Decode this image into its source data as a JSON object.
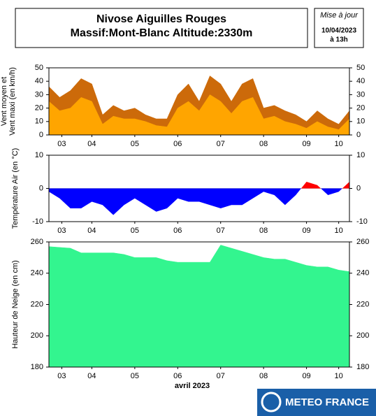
{
  "header": {
    "title": [
      "Nivose Aiguilles Rouges",
      "Massif:Mont-Blanc Altitude:2330m"
    ],
    "update": [
      "Mise à jour",
      "10/04/2023",
      "à 13h"
    ]
  },
  "logo": "METEO FRANCE",
  "chart_data": [
    {
      "type": "area",
      "ylabel": [
        "Vent moyen et",
        "Vent maxi (en km/h)"
      ],
      "x": [
        3.5,
        3.75,
        4,
        4.25,
        4.5,
        4.75,
        5,
        5.25,
        5.5,
        5.75,
        6,
        6.25,
        6.5,
        6.75,
        7,
        7.25,
        7.5,
        7.75,
        8,
        8.25,
        8.5,
        8.75,
        9,
        9.25,
        9.5,
        9.75,
        10,
        10.25,
        10.5
      ],
      "xlim": [
        3.5,
        10.5
      ],
      "xticks": [
        {
          "value": 3.8,
          "label": "03"
        },
        {
          "value": 4.5,
          "label": "04"
        },
        {
          "value": 5.5,
          "label": "05"
        },
        {
          "value": 6.5,
          "label": "06"
        },
        {
          "value": 7.5,
          "label": "07"
        },
        {
          "value": 8.5,
          "label": "08"
        },
        {
          "value": 9.5,
          "label": "09"
        },
        {
          "value": 10.25,
          "label": "10"
        }
      ],
      "ylim": [
        0,
        50
      ],
      "yticks": [
        0,
        10,
        20,
        30,
        40,
        50
      ],
      "series": [
        {
          "color": "#cc6a0a",
          "values": [
            36,
            28,
            33,
            42,
            38,
            15,
            22,
            18,
            20,
            15,
            12,
            12,
            30,
            38,
            25,
            44,
            38,
            25,
            38,
            42,
            20,
            22,
            18,
            15,
            10,
            18,
            12,
            8,
            18
          ]
        },
        {
          "color": "#ffa500",
          "values": [
            25,
            18,
            20,
            28,
            25,
            8,
            14,
            12,
            12,
            10,
            7,
            6,
            20,
            25,
            18,
            30,
            25,
            16,
            25,
            28,
            12,
            14,
            10,
            8,
            5,
            10,
            6,
            4,
            12
          ]
        }
      ]
    },
    {
      "type": "signed-area",
      "ylabel": [
        "Température Air (en °C)"
      ],
      "x": [
        3.5,
        3.75,
        4,
        4.25,
        4.5,
        4.75,
        5,
        5.25,
        5.5,
        5.75,
        6,
        6.25,
        6.5,
        6.75,
        7,
        7.25,
        7.5,
        7.75,
        8,
        8.25,
        8.5,
        8.75,
        9,
        9.25,
        9.5,
        9.75,
        10,
        10.25,
        10.5
      ],
      "xlim": [
        3.5,
        10.5
      ],
      "xticks": [
        {
          "value": 3.8,
          "label": "03"
        },
        {
          "value": 4.5,
          "label": "04"
        },
        {
          "value": 5.5,
          "label": "05"
        },
        {
          "value": 6.5,
          "label": "06"
        },
        {
          "value": 7.5,
          "label": "07"
        },
        {
          "value": 8.5,
          "label": "08"
        },
        {
          "value": 9.5,
          "label": "09"
        },
        {
          "value": 10.25,
          "label": "10"
        }
      ],
      "ylim": [
        -10,
        10
      ],
      "yticks": [
        -10,
        0,
        10
      ],
      "grid": true,
      "color_above": "#ff0000",
      "color_below": "#0000ff",
      "values": [
        -1,
        -3,
        -6,
        -6,
        -4,
        -5,
        -8,
        -5,
        -3,
        -5,
        -7,
        -6,
        -3,
        -4,
        -4,
        -5,
        -6,
        -5,
        -5,
        -3,
        -1,
        -2,
        -5,
        -2,
        2,
        1,
        -2,
        -1,
        2
      ]
    },
    {
      "type": "area",
      "ylabel": [
        "Hauteur de Neige (en cm)"
      ],
      "xlabel": "avril 2023",
      "x": [
        3.5,
        3.75,
        4,
        4.25,
        4.5,
        4.75,
        5,
        5.25,
        5.5,
        5.75,
        6,
        6.25,
        6.5,
        6.75,
        7,
        7.25,
        7.5,
        7.75,
        8,
        8.25,
        8.5,
        8.75,
        9,
        9.25,
        9.5,
        9.75,
        10,
        10.25,
        10.5
      ],
      "xlim": [
        3.5,
        10.5
      ],
      "xticks": [
        {
          "value": 3.8,
          "label": "03"
        },
        {
          "value": 4.5,
          "label": "04"
        },
        {
          "value": 5.5,
          "label": "05"
        },
        {
          "value": 6.5,
          "label": "06"
        },
        {
          "value": 7.5,
          "label": "07"
        },
        {
          "value": 8.5,
          "label": "08"
        },
        {
          "value": 9.5,
          "label": "09"
        },
        {
          "value": 10.25,
          "label": "10"
        }
      ],
      "ylim": [
        180,
        260
      ],
      "yticks": [
        180,
        200,
        220,
        240,
        260
      ],
      "series": [
        {
          "color": "#33f58f",
          "values": [
            257,
            256.5,
            256,
            253,
            253,
            253,
            253,
            252,
            250,
            250,
            250,
            248,
            247,
            247,
            247,
            247,
            258,
            256,
            254,
            252,
            250,
            249,
            249,
            247,
            245,
            244,
            244,
            242,
            241
          ]
        }
      ]
    }
  ]
}
